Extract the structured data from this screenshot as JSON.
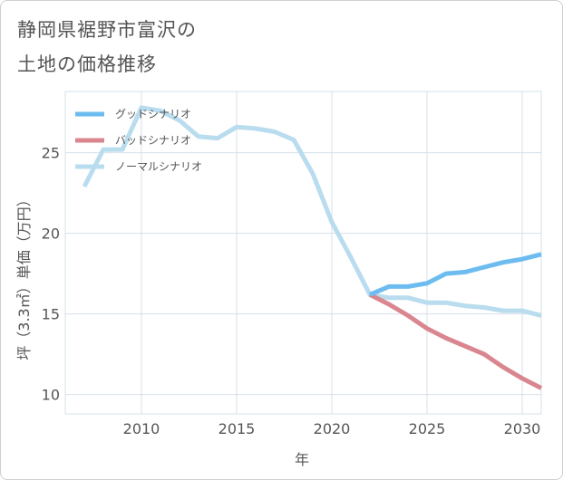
{
  "title_line1": "静岡県裾野市富沢の",
  "title_line2": "土地の価格推移",
  "chart_data": {
    "type": "line",
    "xlabel": "年",
    "ylabel": "坪（3.3㎡）単価（万円）",
    "xlim": [
      2006,
      2031
    ],
    "ylim": [
      8.8,
      28.8
    ],
    "xticks": [
      "2010",
      "2015",
      "2020",
      "2025",
      "2030"
    ],
    "yticks": [
      "10",
      "15",
      "20",
      "25"
    ],
    "legend_position": "top-left",
    "series": [
      {
        "name": "グッドシナリオ",
        "color": "#6dbcf0",
        "x": [
          2022,
          2023,
          2024,
          2025,
          2026,
          2027,
          2028,
          2029,
          2030,
          2031
        ],
        "y": [
          16.2,
          16.7,
          16.7,
          16.9,
          17.5,
          17.6,
          17.9,
          18.2,
          18.4,
          18.7
        ]
      },
      {
        "name": "バッドシナリオ",
        "color": "#d9868f",
        "x": [
          2022,
          2023,
          2024,
          2025,
          2026,
          2027,
          2028,
          2029,
          2030,
          2031
        ],
        "y": [
          16.2,
          15.6,
          14.9,
          14.1,
          13.5,
          13.0,
          12.5,
          11.7,
          11.0,
          10.4
        ]
      },
      {
        "name": "ノーマルシナリオ",
        "color": "#b9dcee",
        "x": [
          2007,
          2008,
          2009,
          2010,
          2011,
          2012,
          2013,
          2014,
          2015,
          2016,
          2017,
          2018,
          2019,
          2020,
          2021,
          2022,
          2023,
          2024,
          2025,
          2026,
          2027,
          2028,
          2029,
          2030,
          2031
        ],
        "y": [
          22.9,
          25.2,
          25.2,
          27.8,
          27.6,
          27.0,
          26.0,
          25.9,
          26.6,
          26.5,
          26.3,
          25.8,
          23.7,
          20.7,
          18.5,
          16.2,
          16.0,
          16.0,
          15.7,
          15.7,
          15.5,
          15.4,
          15.2,
          15.2,
          14.9
        ]
      }
    ]
  }
}
